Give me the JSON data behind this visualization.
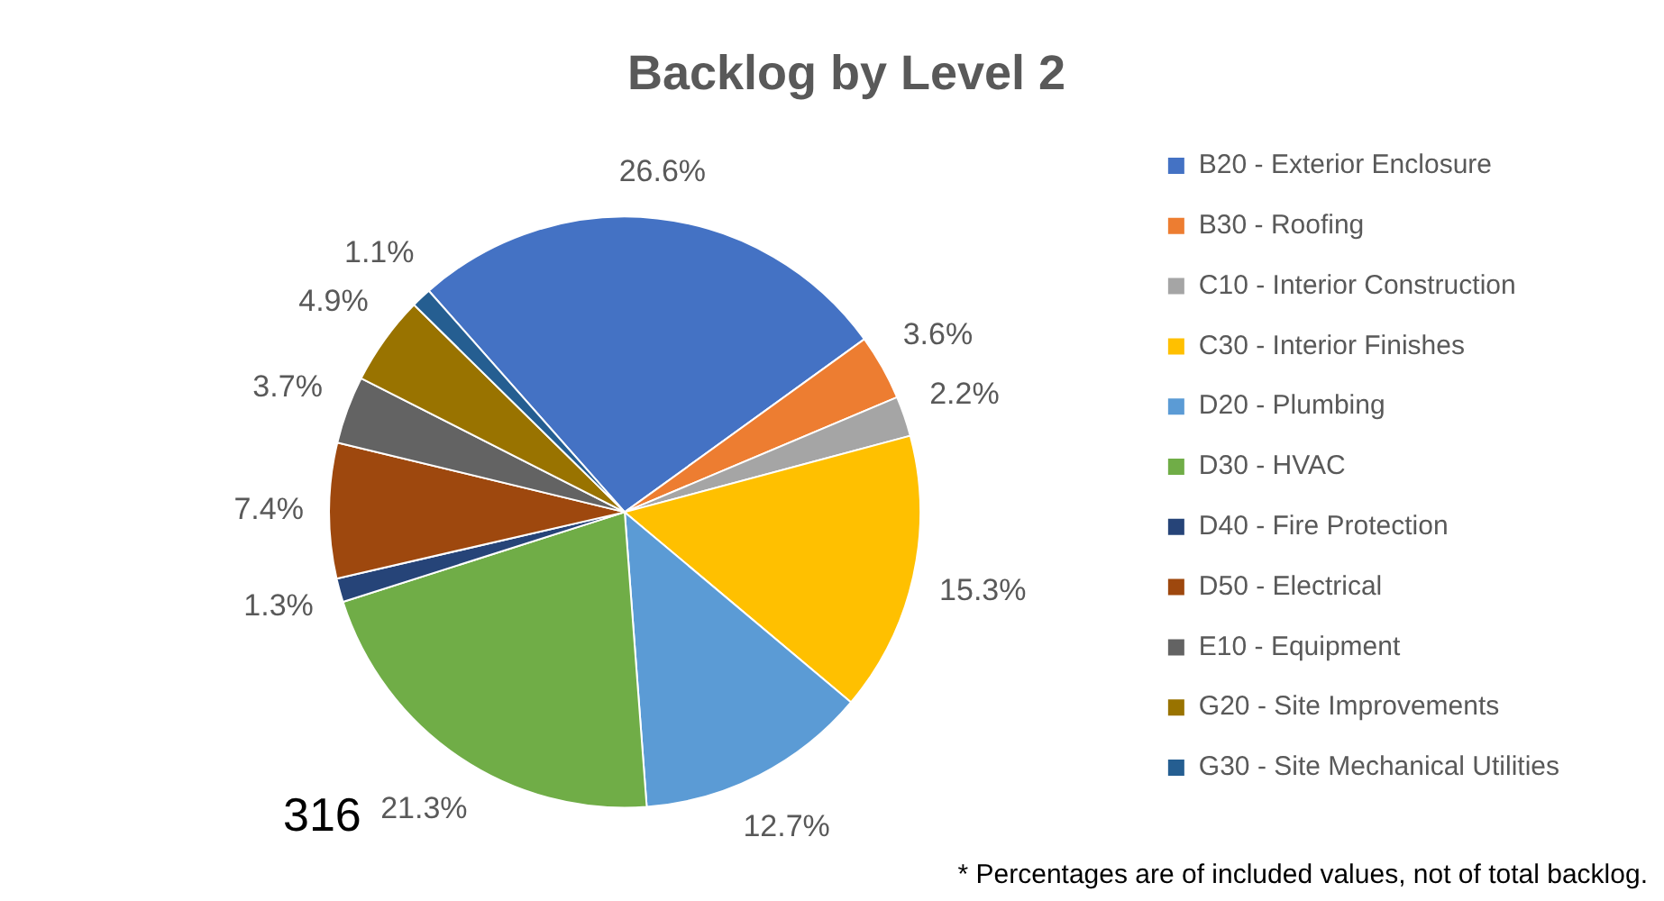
{
  "chart_data": {
    "type": "pie",
    "title": "Backlog by Level 2",
    "categories": [
      "B20 - Exterior Enclosure",
      "B30 - Roofing",
      "C10 - Interior Construction",
      "C30 - Interior Finishes",
      "D20 - Plumbing",
      "D30 - HVAC",
      "D40 - Fire Protection",
      "D50 - Electrical",
      "E10 - Equipment",
      "G20 - Site Improvements",
      "G30 - Site Mechanical Utilities"
    ],
    "values": [
      26.6,
      3.6,
      2.2,
      15.3,
      12.7,
      21.3,
      1.3,
      7.4,
      3.7,
      4.9,
      1.1
    ],
    "colors": [
      "#4472c4",
      "#ed7d31",
      "#a5a5a5",
      "#ffc000",
      "#5b9bd5",
      "#70ad47",
      "#264478",
      "#9e480e",
      "#636363",
      "#997300",
      "#255e91"
    ],
    "value_labels": [
      "26.6%",
      "3.6%",
      "2.2%",
      "15.3%",
      "12.7%",
      "21.3%",
      "1.3%",
      "7.4%",
      "3.7%",
      "4.9%",
      "1.1%"
    ],
    "legend": "right",
    "annotations": [
      "* Percentages are of included values, not of total backlog.",
      "316"
    ]
  }
}
